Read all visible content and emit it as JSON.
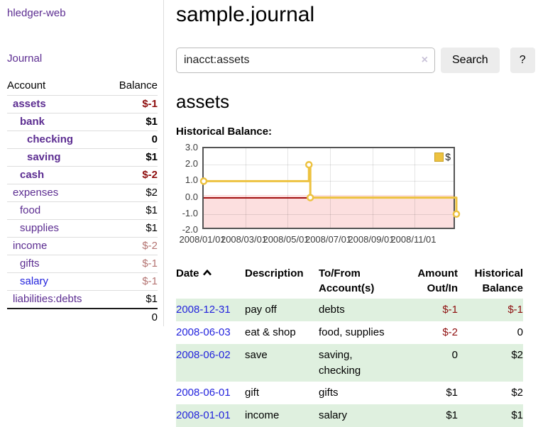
{
  "colors": {
    "link-purple": "#5c2d91",
    "link-blue": "#2323dd",
    "neg-strong": "#8e0e0e",
    "neg-muted": "#b47472",
    "row-green": "#dff0df",
    "chart-yellow": "#edc240",
    "chart-yellow-border": "#c9a227",
    "chart-pink": "#fcdfdf",
    "zero-line": "#a21212",
    "chart-border": "#545454",
    "button-bg": "#ececec",
    "divider": "#dddddd"
  },
  "app": {
    "brand": "hledger-web",
    "nav_journal": "Journal"
  },
  "sidebar": {
    "headers": [
      "Account",
      "Balance"
    ],
    "rows": [
      {
        "name": "assets",
        "balance": "$-1",
        "depth": 1,
        "bold": true,
        "link": "purple",
        "balance_style": "neg-strong"
      },
      {
        "name": "bank",
        "balance": "$1",
        "depth": 2,
        "bold": true,
        "link": "purple",
        "balance_style": "pos"
      },
      {
        "name": "checking",
        "balance": "0",
        "depth": 3,
        "bold": true,
        "link": "purple",
        "balance_style": "pos"
      },
      {
        "name": "saving",
        "balance": "$1",
        "depth": 3,
        "bold": true,
        "link": "purple",
        "balance_style": "pos"
      },
      {
        "name": "cash",
        "balance": "$-2",
        "depth": 2,
        "bold": true,
        "link": "purple",
        "balance_style": "neg-strong"
      },
      {
        "name": "expenses",
        "balance": "$2",
        "depth": 1,
        "bold": false,
        "link": "purple",
        "balance_style": "pos"
      },
      {
        "name": "food",
        "balance": "$1",
        "depth": 2,
        "bold": false,
        "link": "purple",
        "balance_style": "pos"
      },
      {
        "name": "supplies",
        "balance": "$1",
        "depth": 2,
        "bold": false,
        "link": "purple",
        "balance_style": "pos"
      },
      {
        "name": "income",
        "balance": "$-2",
        "depth": 1,
        "bold": false,
        "link": "purple",
        "balance_style": "neg-muted"
      },
      {
        "name": "gifts",
        "balance": "$-1",
        "depth": 2,
        "bold": false,
        "link": "purple",
        "balance_style": "neg-muted"
      },
      {
        "name": "salary",
        "balance": "$-1",
        "depth": 2,
        "bold": false,
        "link": "blue",
        "balance_style": "neg-muted"
      },
      {
        "name": "liabilities:debts",
        "balance": "$1",
        "depth": 1,
        "bold": false,
        "link": "purple",
        "balance_style": "pos"
      }
    ],
    "total": "0"
  },
  "main": {
    "title": "sample.journal",
    "search": {
      "value": "inacct:assets",
      "clear_icon": "×",
      "button_label": "Search",
      "help_label": "?"
    },
    "account_heading": "assets"
  },
  "chart_data": {
    "type": "line",
    "title": "Historical Balance:",
    "step": true,
    "series": [
      {
        "name": "$",
        "color": "#edc240",
        "points": [
          [
            "2008/01/01",
            1.0
          ],
          [
            "2008/06/01",
            2.0
          ],
          [
            "2008/06/03",
            0.0
          ],
          [
            "2008/12/31",
            -1.0
          ]
        ]
      }
    ],
    "xlim": [
      "2008/01/01",
      "2008/12/31"
    ],
    "ylim": [
      -2.0,
      3.0
    ],
    "x_ticks": [
      "2008/01/01",
      "2008/03/01",
      "2008/05/01",
      "2008/07/01",
      "2008/09/01",
      "2008/11/01"
    ],
    "y_ticks": [
      "3.0",
      "2.0",
      "1.0",
      "0.0",
      "-1.0",
      "-2.0"
    ],
    "grid": true,
    "legend_position": "top-right",
    "legend_label": "$",
    "negative_region": true
  },
  "register": {
    "headers": [
      {
        "label": "Date",
        "sorted_asc": true,
        "align": "left"
      },
      {
        "label": "Description",
        "align": "left"
      },
      {
        "label": "To/From Account(s)",
        "align": "left"
      },
      {
        "label": "Amount Out/In",
        "align": "right"
      },
      {
        "label": "Historical Balance",
        "align": "right"
      }
    ],
    "rows": [
      {
        "date": "2008-12-31",
        "description": "pay off",
        "accounts": "debts",
        "amount": "$-1",
        "balance": "$-1",
        "amount_negative": true,
        "balance_negative": true
      },
      {
        "date": "2008-06-03",
        "description": "eat & shop",
        "accounts": "food, supplies",
        "amount": "$-2",
        "balance": "0",
        "amount_negative": true,
        "balance_negative": false
      },
      {
        "date": "2008-06-02",
        "description": "save",
        "accounts": "saving, checking",
        "amount": "0",
        "balance": "$2",
        "amount_negative": false,
        "balance_negative": false
      },
      {
        "date": "2008-06-01",
        "description": "gift",
        "accounts": "gifts",
        "amount": "$1",
        "balance": "$2",
        "amount_negative": false,
        "balance_negative": false
      },
      {
        "date": "2008-01-01",
        "description": "income",
        "accounts": "salary",
        "amount": "$1",
        "balance": "$1",
        "amount_negative": false,
        "balance_negative": false
      }
    ]
  }
}
